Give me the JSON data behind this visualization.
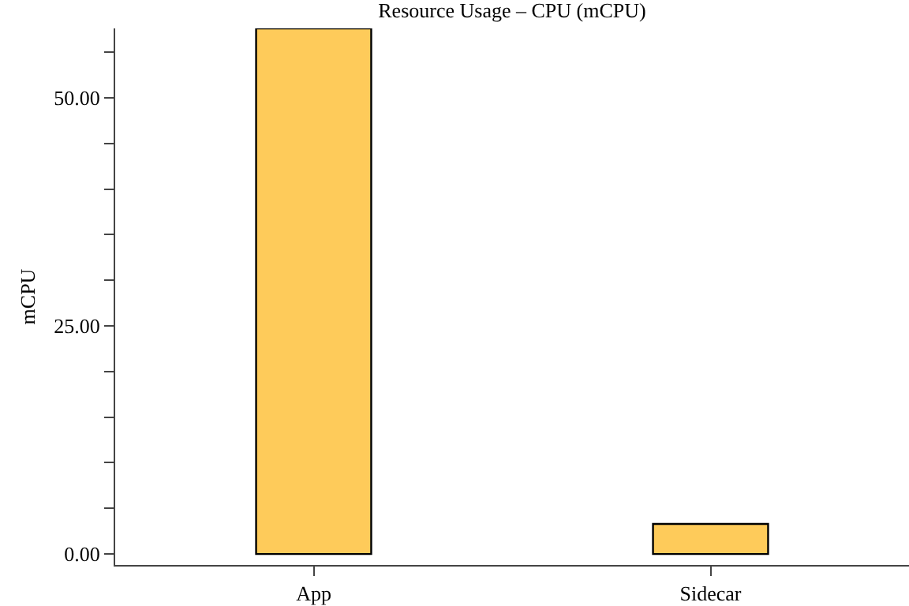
{
  "chart_data": {
    "type": "bar",
    "title": "Resource Usage – CPU (mCPU)",
    "ylabel": "mCPU",
    "categories": [
      "App",
      "Sidecar"
    ],
    "values": [
      57.6,
      3.3
    ],
    "color": "#fecb5a",
    "ylim": [
      -1.2,
      57.6
    ],
    "yticks": [
      {
        "value": 0,
        "label": "0.00"
      },
      {
        "value": 5,
        "label": null
      },
      {
        "value": 10,
        "label": null
      },
      {
        "value": 15,
        "label": null
      },
      {
        "value": 20,
        "label": null
      },
      {
        "value": 25,
        "label": "25.00"
      },
      {
        "value": 30,
        "label": null
      },
      {
        "value": 35,
        "label": null
      },
      {
        "value": 40,
        "label": null
      },
      {
        "value": 45,
        "label": null
      },
      {
        "value": 50,
        "label": "50.00"
      },
      {
        "value": 55,
        "label": null
      }
    ],
    "grid": false,
    "legend": false
  }
}
